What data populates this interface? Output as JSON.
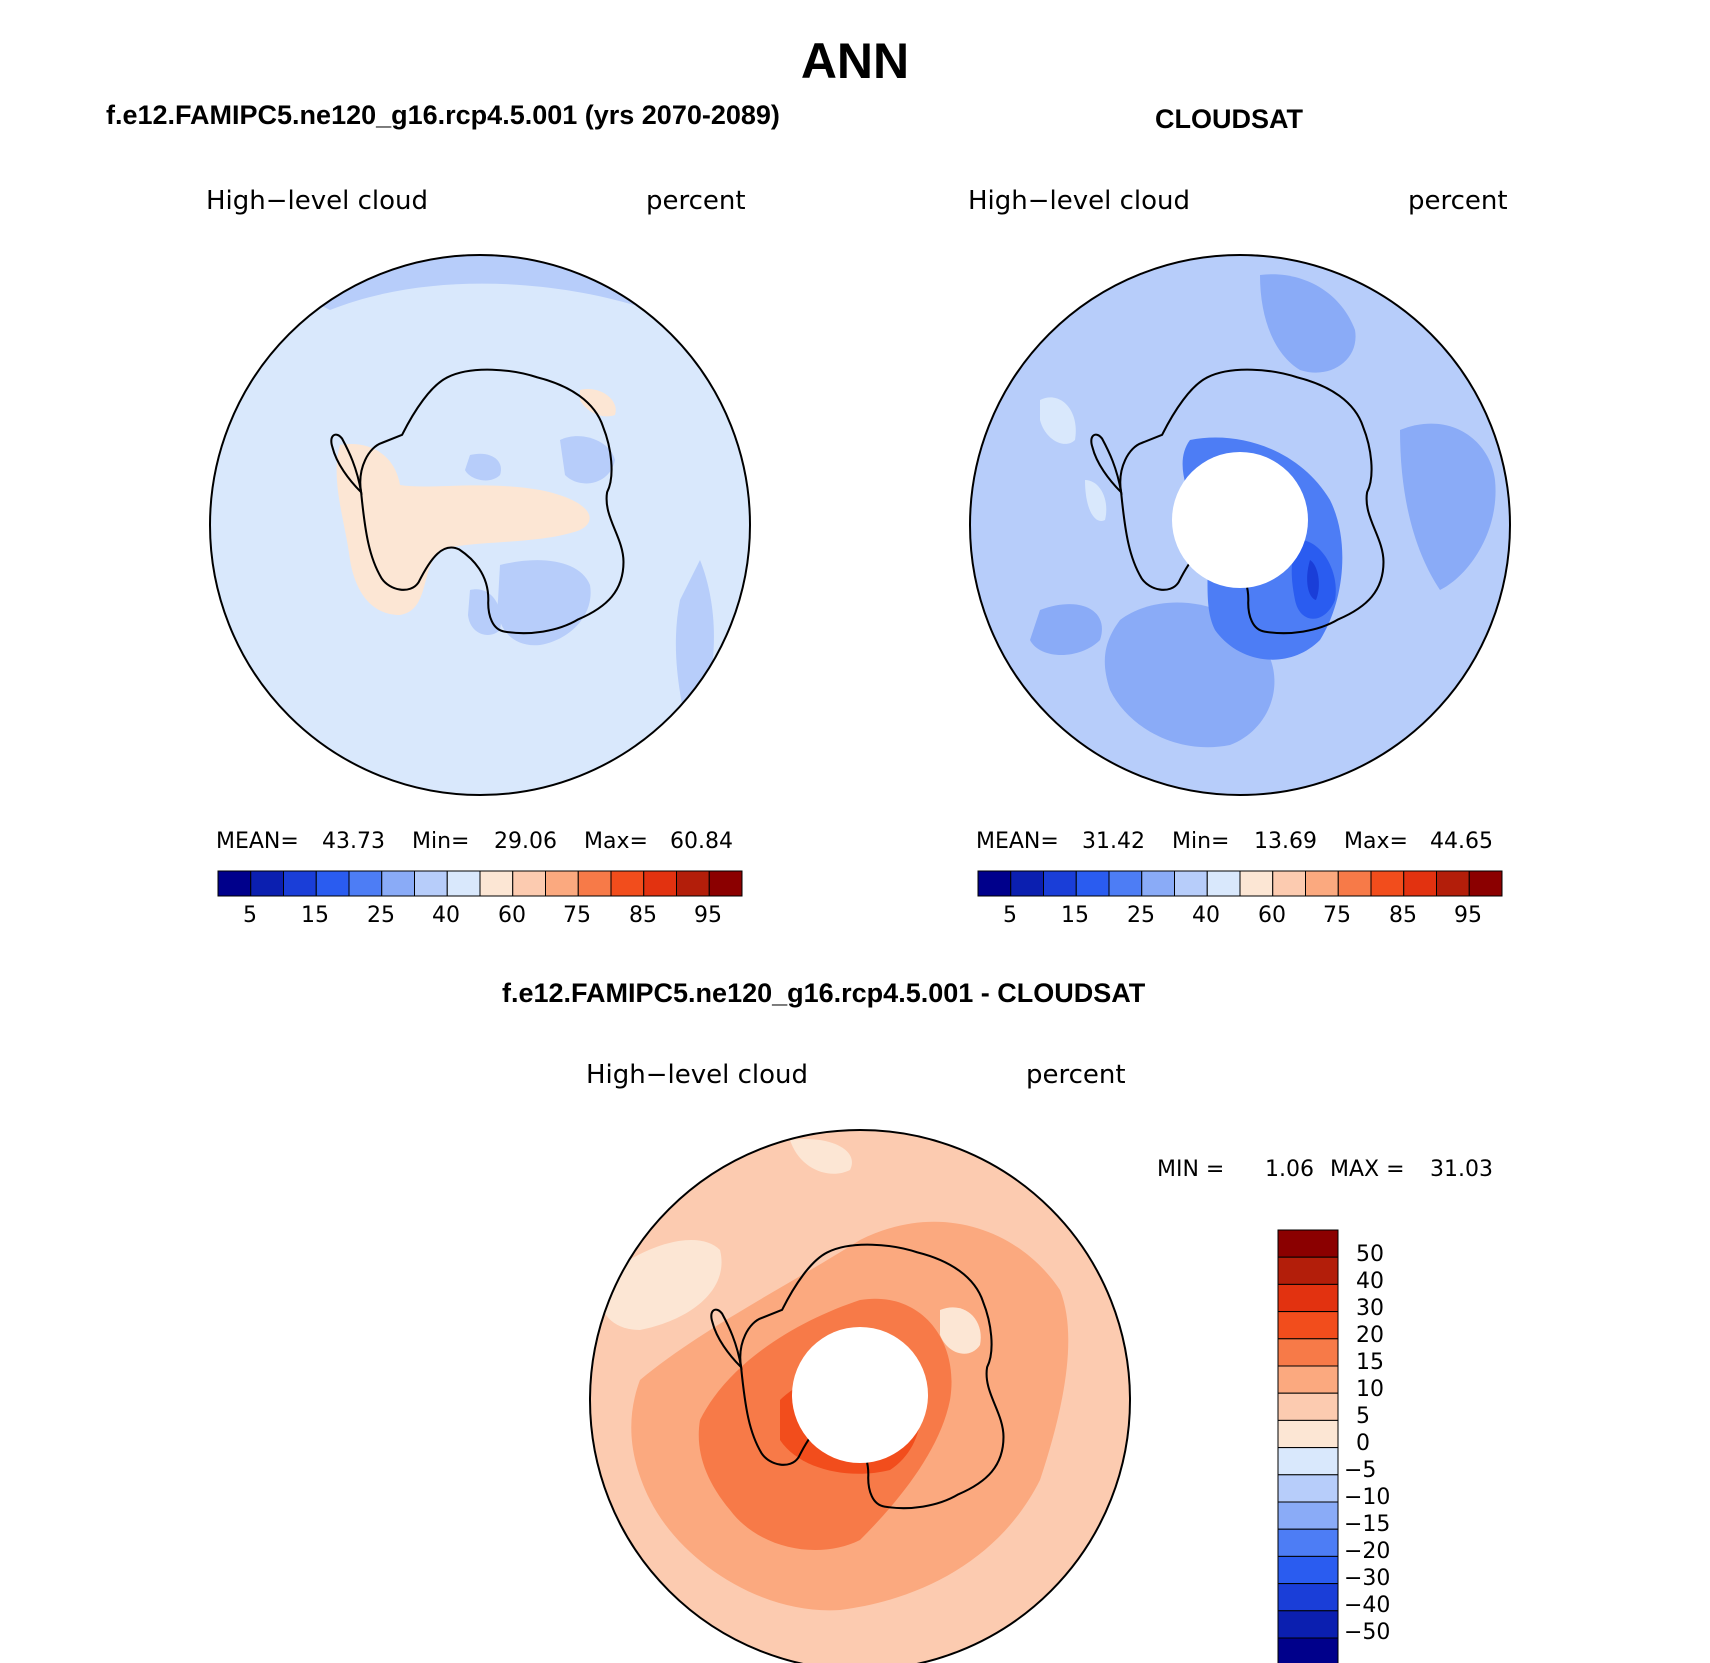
{
  "figure_title": "ANN",
  "colors": {
    "abs_scale": [
      "#00008b",
      "#0b1fb0",
      "#1a3ed8",
      "#2a5cf0",
      "#4d7df5",
      "#8aabf7",
      "#b7cdfa",
      "#d9e8fc",
      "#fce6d4",
      "#fccbb0",
      "#fba97f",
      "#f77a48",
      "#f24d1c",
      "#e23210",
      "#b31e0a",
      "#8b0000"
    ],
    "diff_scale": [
      "#8b0000",
      "#b31e0a",
      "#e23210",
      "#f24d1c",
      "#f77a48",
      "#fba97f",
      "#fccbb0",
      "#fce6d4",
      "#d9e8fc",
      "#b7cdfa",
      "#8aabf7",
      "#4d7df5",
      "#2a5cf0",
      "#1a3ed8",
      "#0b1fb0",
      "#00008b"
    ],
    "land_outline": "#000000"
  },
  "panels": [
    {
      "title": "f.e12.FAMIPC5.ne120_g16.rcp4.5.001 (yrs 2070-2089)",
      "left_label": "High−level cloud",
      "right_label": "percent",
      "stats": {
        "mean_label": "MEAN=",
        "mean": "43.73",
        "min_label": "Min=",
        "min": "29.06",
        "max_label": "Max=",
        "max": "60.84"
      },
      "colorbar_labels": [
        "5",
        "15",
        "25",
        "40",
        "60",
        "75",
        "85",
        "95"
      ]
    },
    {
      "title": "CLOUDSAT",
      "left_label": "High−level cloud",
      "right_label": "percent",
      "stats": {
        "mean_label": "MEAN=",
        "mean": "31.42",
        "min_label": "Min=",
        "min": "13.69",
        "max_label": "Max=",
        "max": "44.65"
      },
      "colorbar_labels": [
        "5",
        "15",
        "25",
        "40",
        "60",
        "75",
        "85",
        "95"
      ]
    },
    {
      "title": "f.e12.FAMIPC5.ne120_g16.rcp4.5.001 - CLOUDSAT",
      "left_label": "High−level cloud",
      "right_label": "percent",
      "stats": {
        "min_label": "MIN =",
        "min": "1.06",
        "max_label": "MAX =",
        "max": "31.03"
      },
      "colorbar_labels": [
        "50",
        "40",
        "30",
        "20",
        "15",
        "10",
        "5",
        "0",
        "−5",
        "−10",
        "−15",
        "−20",
        "−30",
        "−40",
        "−50"
      ]
    }
  ]
}
